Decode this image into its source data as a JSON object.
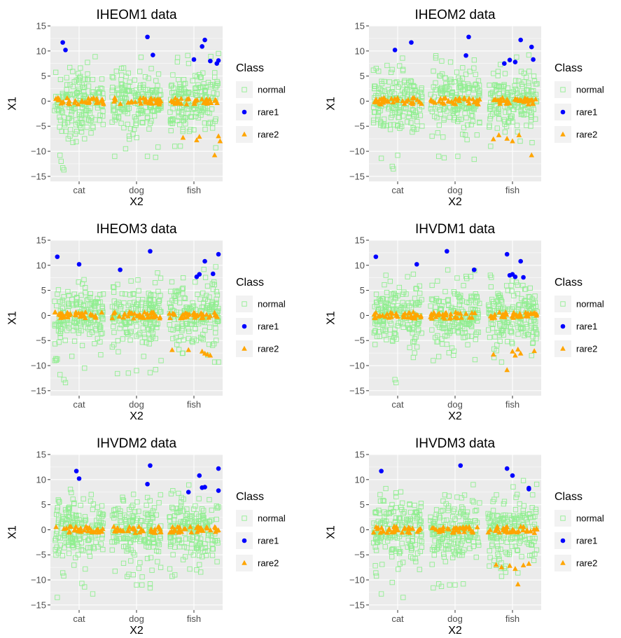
{
  "chart_data": [
    {
      "type": "scatter",
      "title": "IHEOM1 data",
      "xlabel": "X2",
      "ylabel": "X1",
      "categories": [
        "cat",
        "dog",
        "fish"
      ],
      "ylim": [
        -16,
        15
      ],
      "yticks": [
        -15,
        -10,
        -5,
        0,
        5,
        10,
        15
      ],
      "grid": true,
      "legend": {
        "title": "Class",
        "position": "right",
        "entries": [
          "normal",
          "rare1",
          "rare2"
        ]
      },
      "rare1": [
        [
          "cat",
          -0.3,
          11.7
        ],
        [
          "cat",
          -0.25,
          10.2
        ],
        [
          "dog",
          0.2,
          12.8
        ],
        [
          "dog",
          0.3,
          9.2
        ],
        [
          "fish",
          0.0,
          8.3
        ],
        [
          "fish",
          0.15,
          10.9
        ],
        [
          "fish",
          0.2,
          12.2
        ],
        [
          "fish",
          0.3,
          8.0
        ],
        [
          "fish",
          0.42,
          7.5
        ],
        [
          "fish",
          0.45,
          8.1
        ]
      ],
      "rare2": [
        [
          "fish",
          -0.2,
          -7.3
        ],
        [
          "fish",
          0.05,
          -7.8
        ],
        [
          "fish",
          0.1,
          -7.1
        ],
        [
          "fish",
          0.45,
          -7.0
        ],
        [
          "fish",
          0.48,
          -8.0
        ],
        [
          "fish",
          0.38,
          -10.8
        ]
      ],
      "normal_outliers": [
        [
          "cat",
          -0.35,
          -10.8
        ],
        [
          "cat",
          -0.33,
          -12.0
        ],
        [
          "cat",
          -0.3,
          -13.3
        ],
        [
          "cat",
          -0.28,
          -13.7
        ],
        [
          "cat",
          -0.2,
          -7.5
        ],
        [
          "cat",
          0.1,
          -7.5
        ],
        [
          "dog",
          -0.4,
          -11.0
        ],
        [
          "dog",
          -0.2,
          -9.5
        ],
        [
          "dog",
          0.2,
          -11.0
        ],
        [
          "dog",
          0.35,
          -11.2
        ],
        [
          "fish",
          -0.35,
          -9.0
        ],
        [
          "fish",
          0.4,
          -9.3
        ],
        [
          "fish",
          0.45,
          9.5
        ],
        [
          "fish",
          -0.3,
          8.7
        ]
      ]
    },
    {
      "type": "scatter",
      "title": "IHEOM2 data",
      "xlabel": "X2",
      "ylabel": "X1",
      "categories": [
        "cat",
        "dog",
        "fish"
      ],
      "ylim": [
        -16,
        15
      ],
      "yticks": [
        -15,
        -10,
        -5,
        0,
        5,
        10,
        15
      ],
      "grid": true,
      "legend": {
        "title": "Class",
        "position": "right",
        "entries": [
          "normal",
          "rare1",
          "rare2"
        ]
      },
      "rare1": [
        [
          "cat",
          -0.05,
          10.2
        ],
        [
          "cat",
          0.25,
          11.7
        ],
        [
          "dog",
          0.2,
          9.1
        ],
        [
          "dog",
          0.25,
          12.8
        ],
        [
          "fish",
          -0.15,
          7.5
        ],
        [
          "fish",
          -0.05,
          8.2
        ],
        [
          "fish",
          0.05,
          7.8
        ],
        [
          "fish",
          0.15,
          12.2
        ],
        [
          "fish",
          0.35,
          10.8
        ],
        [
          "fish",
          0.38,
          8.3
        ]
      ],
      "rare2": [
        [
          "fish",
          -0.35,
          -7.6
        ],
        [
          "fish",
          -0.25,
          -6.8
        ],
        [
          "fish",
          -0.1,
          -7.5
        ],
        [
          "fish",
          0.0,
          -8.0
        ],
        [
          "fish",
          0.12,
          -6.8
        ],
        [
          "fish",
          0.35,
          -10.8
        ]
      ],
      "normal_outliers": [
        [
          "cat",
          -0.3,
          -11.4
        ],
        [
          "cat",
          -0.1,
          -13.0
        ],
        [
          "cat",
          -0.08,
          -13.5
        ],
        [
          "cat",
          0.0,
          -10.8
        ],
        [
          "dog",
          -0.3,
          -11.0
        ],
        [
          "dog",
          -0.2,
          -11.3
        ],
        [
          "dog",
          0.05,
          -11.0
        ],
        [
          "dog",
          0.35,
          -11.6
        ],
        [
          "fish",
          -0.4,
          -9.0
        ],
        [
          "fish",
          0.3,
          9.2
        ]
      ]
    },
    {
      "type": "scatter",
      "title": "IHEOM3 data",
      "xlabel": "X2",
      "ylabel": "X1",
      "categories": [
        "cat",
        "dog",
        "fish"
      ],
      "ylim": [
        -16,
        15
      ],
      "yticks": [
        -15,
        -10,
        -5,
        0,
        5,
        10,
        15
      ],
      "grid": true,
      "legend": {
        "title": "Class",
        "position": "right",
        "entries": [
          "normal",
          "rare1",
          "rare2"
        ]
      },
      "rare1": [
        [
          "cat",
          -0.4,
          11.7
        ],
        [
          "cat",
          0.0,
          10.2
        ],
        [
          "dog",
          -0.3,
          9.1
        ],
        [
          "dog",
          0.25,
          12.8
        ],
        [
          "fish",
          0.05,
          7.7
        ],
        [
          "fish",
          0.1,
          8.2
        ],
        [
          "fish",
          0.2,
          10.8
        ],
        [
          "fish",
          0.35,
          8.3
        ],
        [
          "fish",
          0.45,
          12.2
        ]
      ],
      "rare2": [
        [
          "fish",
          -0.4,
          -6.9
        ],
        [
          "fish",
          -0.1,
          -6.9
        ],
        [
          "fish",
          0.15,
          -7.2
        ],
        [
          "fish",
          0.2,
          -7.6
        ],
        [
          "fish",
          0.25,
          -7.8
        ],
        [
          "fish",
          0.3,
          -8.0
        ]
      ],
      "normal_outliers": [
        [
          "cat",
          -0.4,
          -8.7
        ],
        [
          "cat",
          -0.35,
          -11.8
        ],
        [
          "cat",
          -0.28,
          -12.8
        ],
        [
          "cat",
          -0.25,
          -13.4
        ],
        [
          "cat",
          0.1,
          -10.5
        ],
        [
          "dog",
          -0.35,
          -11.6
        ],
        [
          "dog",
          -0.15,
          -11.5
        ],
        [
          "dog",
          0.0,
          -11.0
        ],
        [
          "dog",
          0.25,
          -11.4
        ],
        [
          "dog",
          0.35,
          -10.8
        ],
        [
          "dog",
          0.45,
          -9.0
        ],
        [
          "fish",
          0.38,
          -9.3
        ],
        [
          "fish",
          0.45,
          -9.3
        ],
        [
          "fish",
          0.4,
          9.7
        ]
      ]
    },
    {
      "type": "scatter",
      "title": "IHVDM1 data",
      "xlabel": "X2",
      "ylabel": "X1",
      "categories": [
        "cat",
        "dog",
        "fish"
      ],
      "ylim": [
        -16,
        15
      ],
      "yticks": [
        -15,
        -10,
        -5,
        0,
        5,
        10,
        15
      ],
      "grid": true,
      "legend": {
        "title": "Class",
        "position": "right",
        "entries": [
          "normal",
          "rare1",
          "rare2"
        ]
      },
      "rare1": [
        [
          "cat",
          -0.4,
          11.7
        ],
        [
          "cat",
          0.35,
          10.2
        ],
        [
          "dog",
          -0.15,
          12.8
        ],
        [
          "dog",
          0.35,
          9.1
        ],
        [
          "fish",
          -0.1,
          12.2
        ],
        [
          "fish",
          -0.05,
          8.0
        ],
        [
          "fish",
          0.0,
          8.2
        ],
        [
          "fish",
          0.05,
          7.7
        ],
        [
          "fish",
          0.15,
          10.8
        ],
        [
          "fish",
          0.2,
          7.6
        ]
      ],
      "rare2": [
        [
          "fish",
          -0.35,
          -7.8
        ],
        [
          "fish",
          -0.1,
          -10.9
        ],
        [
          "fish",
          0.0,
          -7.2
        ],
        [
          "fish",
          0.05,
          -8.0
        ],
        [
          "fish",
          0.1,
          -6.8
        ],
        [
          "fish",
          0.15,
          -7.6
        ],
        [
          "fish",
          0.4,
          -7.1
        ]
      ],
      "normal_outliers": [
        [
          "cat",
          -0.05,
          -12.8
        ],
        [
          "cat",
          -0.03,
          -13.4
        ],
        [
          "dog",
          -0.4,
          -9.0
        ],
        [
          "dog",
          -0.3,
          -8.2
        ],
        [
          "fish",
          -0.2,
          -9.3
        ],
        [
          "fish",
          0.35,
          -8.0
        ]
      ]
    },
    {
      "type": "scatter",
      "title": "IHVDM2 data",
      "xlabel": "X2",
      "ylabel": "X1",
      "categories": [
        "cat",
        "dog",
        "fish"
      ],
      "ylim": [
        -16,
        15
      ],
      "yticks": [
        -15,
        -10,
        -5,
        0,
        5,
        10,
        15
      ],
      "grid": true,
      "legend": {
        "title": "Class",
        "position": "right",
        "entries": [
          "normal",
          "rare1",
          "rare2"
        ]
      },
      "rare1": [
        [
          "cat",
          -0.05,
          11.7
        ],
        [
          "cat",
          0.0,
          10.2
        ],
        [
          "dog",
          0.2,
          9.1
        ],
        [
          "dog",
          0.25,
          12.8
        ],
        [
          "fish",
          -0.1,
          7.5
        ],
        [
          "fish",
          0.1,
          10.8
        ],
        [
          "fish",
          0.15,
          8.4
        ],
        [
          "fish",
          0.2,
          8.5
        ],
        [
          "fish",
          0.45,
          12.2
        ],
        [
          "fish",
          0.45,
          7.8
        ]
      ],
      "rare2": [],
      "normal_outliers": [
        [
          "cat",
          -0.4,
          -13.5
        ],
        [
          "cat",
          -0.3,
          -8.6
        ],
        [
          "cat",
          0.05,
          -10.7
        ],
        [
          "cat",
          0.1,
          -11.4
        ],
        [
          "cat",
          0.25,
          -12.8
        ],
        [
          "dog",
          0.0,
          -11.0
        ],
        [
          "dog",
          0.1,
          -11.0
        ],
        [
          "dog",
          0.25,
          -11.6
        ],
        [
          "dog",
          0.25,
          -10.8
        ],
        [
          "fish",
          -0.4,
          -9.3
        ],
        [
          "fish",
          -0.35,
          -9.0
        ],
        [
          "fish",
          0.05,
          -8.0
        ]
      ]
    },
    {
      "type": "scatter",
      "title": "IHVDM3 data",
      "xlabel": "X2",
      "ylabel": "X1",
      "categories": [
        "cat",
        "dog",
        "fish"
      ],
      "ylim": [
        -16,
        15
      ],
      "yticks": [
        -15,
        -10,
        -5,
        0,
        5,
        10,
        15
      ],
      "grid": true,
      "legend": {
        "title": "Class",
        "position": "right",
        "entries": [
          "normal",
          "rare1",
          "rare2"
        ]
      },
      "rare1": [
        [
          "cat",
          -0.3,
          11.7
        ],
        [
          "dog",
          0.1,
          12.8
        ],
        [
          "fish",
          -0.1,
          12.2
        ],
        [
          "fish",
          0.0,
          10.8
        ],
        [
          "fish",
          0.3,
          8.3
        ],
        [
          "fish",
          0.3,
          8.1
        ]
      ],
      "rare2": [
        [
          "fish",
          -0.3,
          -7.0
        ],
        [
          "fish",
          -0.2,
          -7.5
        ],
        [
          "fish",
          -0.05,
          -7.2
        ],
        [
          "fish",
          0.05,
          -7.8
        ],
        [
          "fish",
          0.1,
          -10.9
        ],
        [
          "fish",
          0.2,
          -7.1
        ],
        [
          "fish",
          0.3,
          -6.8
        ]
      ],
      "normal_outliers": [
        [
          "cat",
          -0.4,
          -8.6
        ],
        [
          "cat",
          -0.3,
          -12.8
        ],
        [
          "cat",
          -0.1,
          -10.5
        ],
        [
          "cat",
          0.1,
          -13.5
        ],
        [
          "dog",
          -0.4,
          -11.6
        ],
        [
          "dog",
          -0.3,
          -10.8
        ],
        [
          "dog",
          -0.25,
          -11.3
        ],
        [
          "dog",
          -0.1,
          -11.0
        ],
        [
          "dog",
          0.0,
          -11.0
        ],
        [
          "dog",
          0.15,
          -10.8
        ],
        [
          "fish",
          -0.2,
          -9.3
        ],
        [
          "fish",
          0.1,
          -8.6
        ],
        [
          "fish",
          0.2,
          9.8
        ]
      ]
    }
  ],
  "colors": {
    "panel": "#ebebeb",
    "grid": "#ffffff",
    "normal": "#90ee90",
    "rare1": "#0000ff",
    "rare2": "#ffa500"
  }
}
